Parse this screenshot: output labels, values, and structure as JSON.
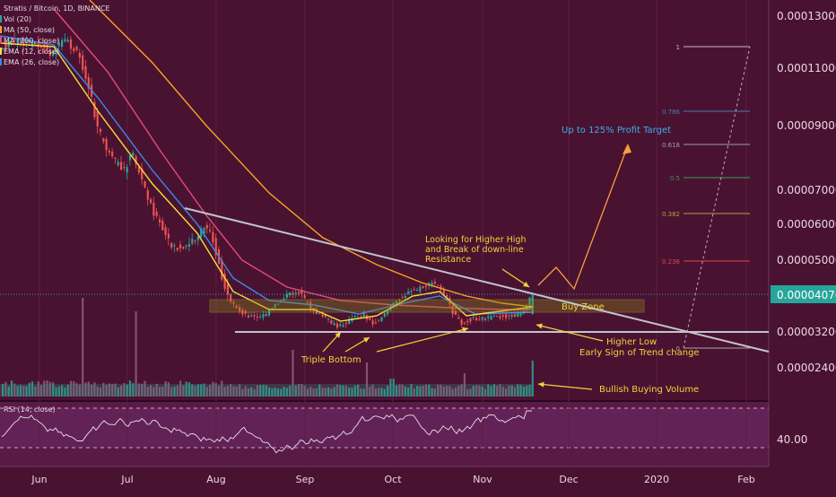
{
  "chart_data": {
    "type": "candlestick",
    "title": "Stratis / Bitcoin, 1D, BINANCE",
    "indicator_legend": [
      "Vol (20)",
      "MA (50, close)",
      "MA (200, close)",
      "EMA (12, close)",
      "EMA (26, close)"
    ],
    "y_axis": {
      "ticks": [
        "0.00013000",
        "0.00011000",
        "0.00009000",
        "0.00007000",
        "0.00006000",
        "0.00005000",
        "0.00003200",
        "0.00002400"
      ],
      "current_price": "0.00004070",
      "scale": "log"
    },
    "x_axis": {
      "ticks": [
        "Jun",
        "Jul",
        "Aug",
        "Sep",
        "Oct",
        "Nov",
        "Dec",
        "2020",
        "Feb"
      ]
    },
    "fib_levels": [
      {
        "label": "1",
        "color": "#c9b8c4"
      },
      {
        "label": "0.786",
        "color": "#4a7ab8"
      },
      {
        "label": "0.618",
        "color": "#9aa4a4"
      },
      {
        "label": "0.5",
        "color": "#3a9a5a"
      },
      {
        "label": "0.382",
        "color": "#b8a038"
      },
      {
        "label": "0.236",
        "color": "#d84a4a"
      },
      {
        "label": "0",
        "color": "#a8a8a8"
      }
    ],
    "annotations": {
      "profit_target": "Up to 125% Profit Target",
      "breakout": [
        "Looking for Higher High",
        "and Break of down-line",
        "Resistance"
      ],
      "buy_zone": "Buy Zone",
      "higher_low": [
        "Higher Low",
        "Early Sign of Trend change"
      ],
      "triple_bottom": "Triple Bottom",
      "volume": "Bullish Buying Volume"
    },
    "rsi": {
      "label": "RSI (14, close)",
      "level_label": "40.00"
    },
    "colors": {
      "up": "#26a69a",
      "down": "#ef5350",
      "background": "#4a1231",
      "annotation": "#f5d33a",
      "target": "#f5a03a"
    }
  }
}
